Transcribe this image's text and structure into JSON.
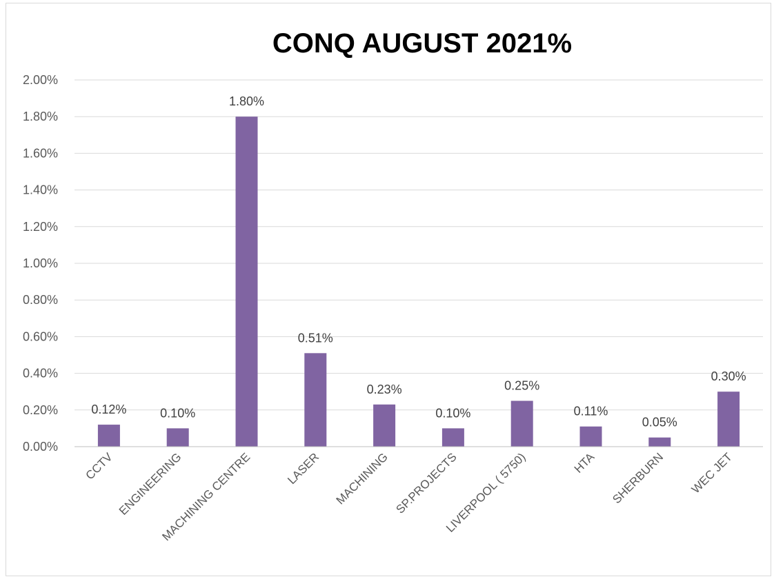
{
  "chart_data": {
    "type": "bar",
    "title": "CONQ AUGUST 2021%",
    "xlabel": "",
    "ylabel": "",
    "categories": [
      "CCTV",
      "ENGINEERING",
      "MACHINING CENTRE",
      "LASER",
      "MACHINING",
      "SP.PROJECTS",
      "LIVERPOOL ( 5750)",
      "HTA",
      "SHERBURN",
      "WEC JET"
    ],
    "values": [
      0.12,
      0.1,
      1.8,
      0.51,
      0.23,
      0.1,
      0.25,
      0.11,
      0.05,
      0.3
    ],
    "value_labels": [
      "0.12%",
      "0.10%",
      "1.80%",
      "0.51%",
      "0.23%",
      "0.10%",
      "0.25%",
      "0.11%",
      "0.05%",
      "0.30%"
    ],
    "ylim": [
      0,
      2.0
    ],
    "yticks": [
      0,
      0.2,
      0.4,
      0.6,
      0.8,
      1.0,
      1.2,
      1.4,
      1.6,
      1.8,
      2.0
    ],
    "ytick_labels": [
      "0.00%",
      "0.20%",
      "0.40%",
      "0.60%",
      "0.80%",
      "1.00%",
      "1.20%",
      "1.40%",
      "1.60%",
      "1.80%",
      "2.00%"
    ],
    "grid": true,
    "legend": "none",
    "bar_color": "#8064a2"
  }
}
